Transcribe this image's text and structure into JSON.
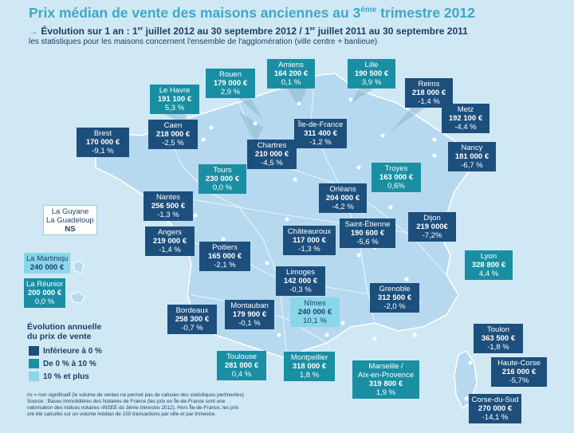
{
  "title": "Prix médian de vente des maisons anciennes au 3ème trimestre 2012",
  "title_main": "Prix médian de vente des maisons anciennes au 3",
  "title_sup": "ème",
  "title_end": " trimestre 2012",
  "subtitle": {
    "arrow": "→",
    "part1": " Évolution sur 1 an : 1",
    "sup1": "er",
    "part2": " juillet 2012 au 30 septembre 2012 / 1",
    "sup2": "er",
    "part3": " juillet 2011 au 30 septembre 2011"
  },
  "subtitle2": "les statistiques pour les maisons concernent l'ensemble de l'agglomération (ville centre + banlieue)",
  "colors": {
    "dark": "#1d4f7c",
    "mid": "#1a8fa3",
    "light": "#8ad6ea",
    "land": "#b7d9ef",
    "sea": "#cfe8f3"
  },
  "cities": [
    {
      "id": "amiens",
      "name": "Amiens",
      "price": "164 200 €",
      "change": "0,1 %",
      "cat": "mid"
    },
    {
      "id": "lille",
      "name": "Lille",
      "price": "190 500 €",
      "change": "3,9 %",
      "cat": "mid"
    },
    {
      "id": "rouen",
      "name": "Rouen",
      "price": "179 000 €",
      "change": "2,9 %",
      "cat": "mid"
    },
    {
      "id": "lehavre",
      "name": "Le Havre",
      "price": "191 100 €",
      "change": "5,3 %",
      "cat": "mid"
    },
    {
      "id": "reims",
      "name": "Reims",
      "price": "218 000 €",
      "change": "-1,4 %",
      "cat": "dark"
    },
    {
      "id": "metz",
      "name": "Metz",
      "price": "192 100 €",
      "change": "-4,4 %",
      "cat": "dark"
    },
    {
      "id": "nancy",
      "name": "Nancy",
      "price": "181 000 €",
      "change": "-6,7 %",
      "cat": "dark"
    },
    {
      "id": "brest",
      "name": "Brest",
      "price": "170 000 €",
      "change": "-9,1 %",
      "cat": "dark"
    },
    {
      "id": "caen",
      "name": "Caen",
      "price": "218 000 €",
      "change": "-2,5 %",
      "cat": "dark"
    },
    {
      "id": "iledefrance",
      "name": "Île-de-France",
      "price": "311 400 €",
      "change": "-1,2 %",
      "cat": "dark"
    },
    {
      "id": "chartres",
      "name": "Chartres",
      "price": "210 000 €",
      "change": "-4,5 %",
      "cat": "dark"
    },
    {
      "id": "tours",
      "name": "Tours",
      "price": "230 000 €",
      "change": "0,0 %",
      "cat": "mid"
    },
    {
      "id": "troyes",
      "name": "Troyes",
      "price": "163 000 €",
      "change": "0,6%",
      "cat": "mid"
    },
    {
      "id": "orleans",
      "name": "Orléans",
      "price": "204 000 €",
      "change": "-4,2 %",
      "cat": "dark"
    },
    {
      "id": "nantes",
      "name": "Nantes",
      "price": "256 500 €",
      "change": "-1,3 %",
      "cat": "dark"
    },
    {
      "id": "dijon",
      "name": "Dijon",
      "price": "219 000€",
      "change": "-7,2%",
      "cat": "dark"
    },
    {
      "id": "saintetienne",
      "name": "Saint-Étienne",
      "price": "190 600 €",
      "change": "-5,6 %",
      "cat": "dark"
    },
    {
      "id": "angers",
      "name": "Angers",
      "price": "219 000 €",
      "change": "-1,4 %",
      "cat": "dark"
    },
    {
      "id": "chateauroux",
      "name": "Châteauroux",
      "price": "117 000 €",
      "change": "-1,3 %",
      "cat": "dark"
    },
    {
      "id": "poitiers",
      "name": "Poitiers",
      "price": "165 000 €",
      "change": "-2,1 %",
      "cat": "dark"
    },
    {
      "id": "lyon",
      "name": "Lyon",
      "price": "328 800 €",
      "change": "4,4 %",
      "cat": "mid"
    },
    {
      "id": "limoges",
      "name": "Limoges",
      "price": "142 000 €",
      "change": "-0,3 %",
      "cat": "dark"
    },
    {
      "id": "grenoble",
      "name": "Grenoble",
      "price": "312 500 €",
      "change": "-2,0 %",
      "cat": "dark"
    },
    {
      "id": "nimes",
      "name": "Nîmes",
      "price": "240 000 €",
      "change": "10,1 %",
      "cat": "light"
    },
    {
      "id": "bordeaux",
      "name": "Bordeaux",
      "price": "258 300 €",
      "change": "-0,7 %",
      "cat": "dark"
    },
    {
      "id": "montauban",
      "name": "Montauban",
      "price": "179 900 €",
      "change": "-0,1 %",
      "cat": "dark"
    },
    {
      "id": "toulon",
      "name": "Toulon",
      "price": "363 500 €",
      "change": "-1,8 %",
      "cat": "dark"
    },
    {
      "id": "hautecorse",
      "name": "Haute-Corse",
      "price": "216 000 €",
      "change": "-5,7%",
      "cat": "dark"
    },
    {
      "id": "toulouse",
      "name": "Toulouse",
      "price": "281 000 €",
      "change": "0,4 %",
      "cat": "mid"
    },
    {
      "id": "montpellier",
      "name": "Montpellier",
      "price": "318 000 €",
      "change": "1,8 %",
      "cat": "mid"
    },
    {
      "id": "marseille",
      "name": "Marseille /",
      "name2": "Aix-en-Provence",
      "price": "319 800 €",
      "change": "1,9 %",
      "cat": "mid"
    },
    {
      "id": "corsedusud",
      "name": "Corse-du-Sud",
      "price": "270 000 €",
      "change": "-14,1 %",
      "cat": "dark"
    },
    {
      "id": "martinique",
      "name": "La Martinique",
      "price": "240 000 €",
      "change": "",
      "cat": "light"
    },
    {
      "id": "reunion",
      "name": "La Réunion",
      "price": "200 000 €",
      "change": "0,0 %",
      "cat": "mid"
    }
  ],
  "overseas_ns": {
    "line1": "La Guyane",
    "line2": "La Guadeloupe",
    "line3": "NS"
  },
  "legend": {
    "title1": "Évolution annuelle",
    "title2": "du prix de vente",
    "items": [
      {
        "label": "Inférieure à 0 %",
        "color": "#1d4f7c"
      },
      {
        "label": "De 0 % à 10 %",
        "color": "#1a8fa3"
      },
      {
        "label": "10 % et plus",
        "color": "#8ad6ea"
      }
    ]
  },
  "notes": {
    "line1": "ns = non significatif (le volume de ventes ne permet pas de calculer des statistiques pertinentes)",
    "line2": "Source : Bases immobilières des Notaires de France (les prix en Île-de-France sont une",
    "line3": "valorisation des indices notaires–INSEE du 3ème trimestre 2012). Hors Île-de-France, les prix",
    "line4": "ont été calculés sur un volume médian de 150 transactions par ville et par trimestre."
  }
}
